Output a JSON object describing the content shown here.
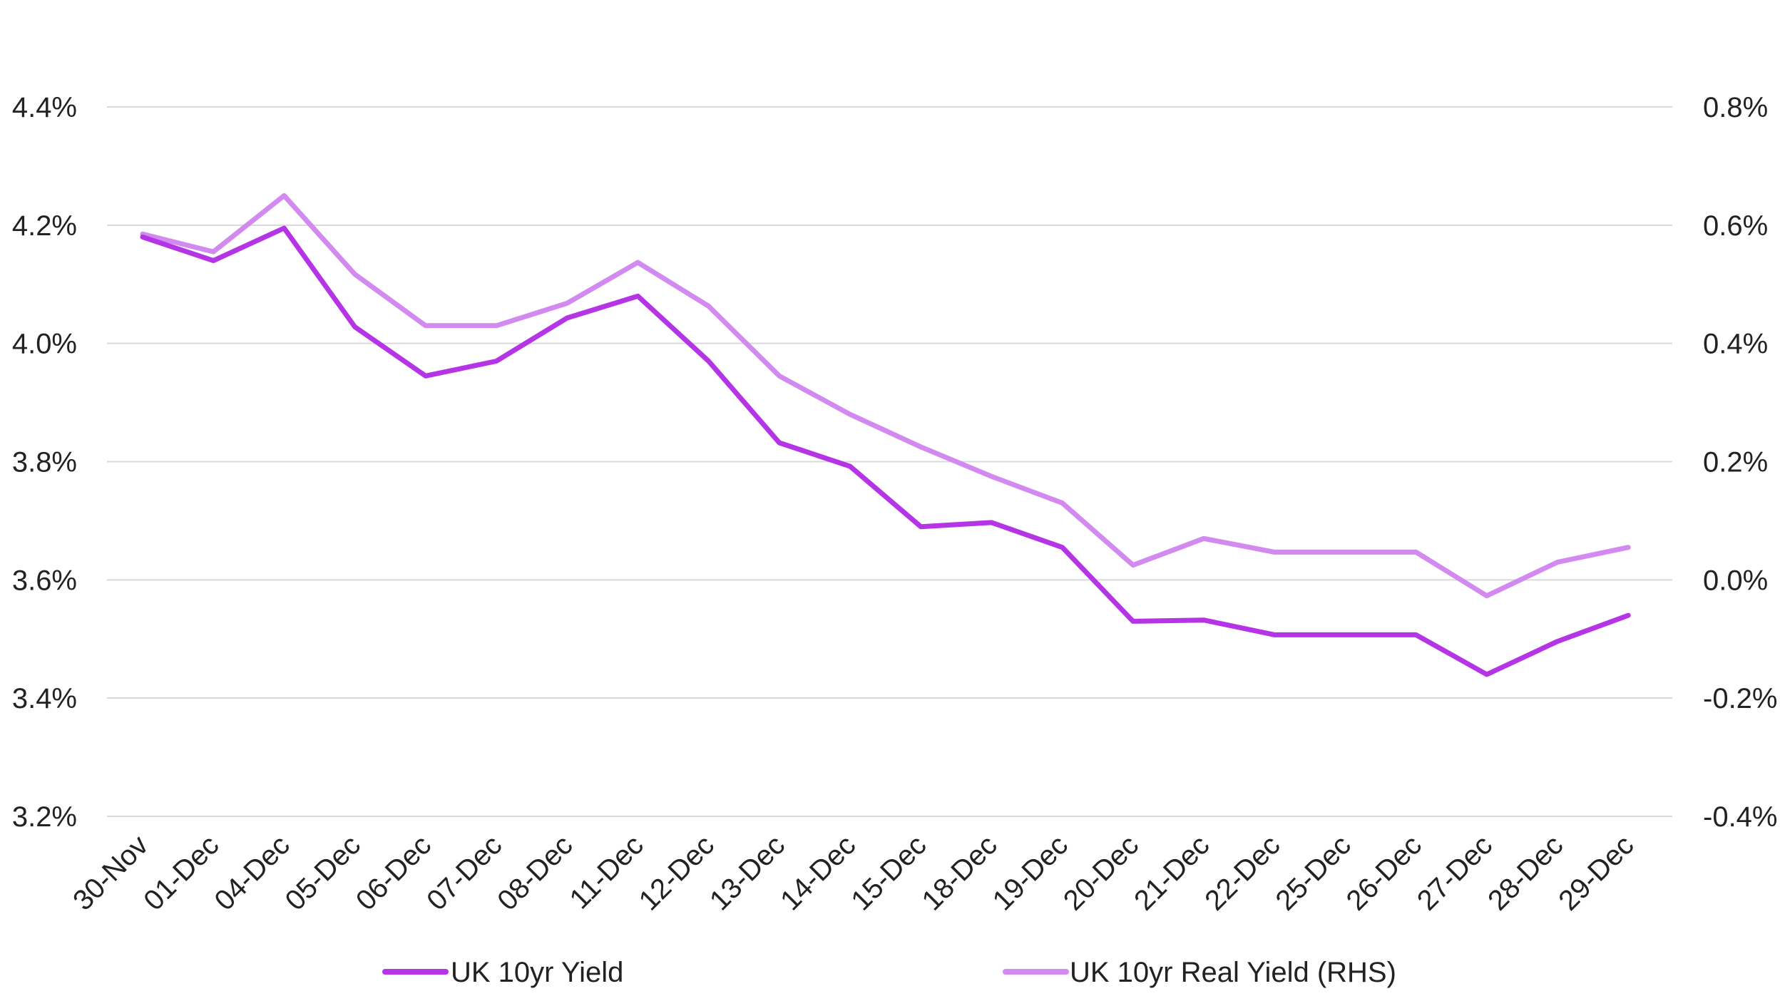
{
  "chart_data": {
    "type": "line",
    "categories": [
      "30-Nov",
      "01-Dec",
      "04-Dec",
      "05-Dec",
      "06-Dec",
      "07-Dec",
      "08-Dec",
      "11-Dec",
      "12-Dec",
      "13-Dec",
      "14-Dec",
      "15-Dec",
      "18-Dec",
      "19-Dec",
      "20-Dec",
      "21-Dec",
      "22-Dec",
      "25-Dec",
      "26-Dec",
      "27-Dec",
      "28-Dec",
      "29-Dec"
    ],
    "y_left": {
      "ticks": [
        "3.2%",
        "3.4%",
        "3.6%",
        "3.8%",
        "4.0%",
        "4.2%",
        "4.4%"
      ],
      "ylim": [
        3.2,
        4.4
      ],
      "unit": "%"
    },
    "y_right": {
      "ticks": [
        "-0.4%",
        "-0.2%",
        "0.0%",
        "0.2%",
        "0.4%",
        "0.6%",
        "0.8%"
      ],
      "ylim": [
        -0.4,
        0.8
      ],
      "unit": "%"
    },
    "series": [
      {
        "name": "UK 10yr Yield",
        "axis": "left",
        "color": "#b535e6",
        "values": [
          4.18,
          4.14,
          4.195,
          4.028,
          3.945,
          3.97,
          4.043,
          4.08,
          3.97,
          3.832,
          3.792,
          3.69,
          3.697,
          3.655,
          3.53,
          3.532,
          3.507,
          3.507,
          3.507,
          3.44,
          3.496,
          3.54
        ]
      },
      {
        "name": "UK 10yr Real Yield (RHS)",
        "axis": "right",
        "color": "#d28af0",
        "values": [
          0.585,
          0.555,
          0.65,
          0.517,
          0.43,
          0.43,
          0.468,
          0.537,
          0.463,
          0.345,
          0.28,
          0.225,
          0.175,
          0.13,
          0.025,
          0.07,
          0.047,
          0.047,
          0.047,
          -0.027,
          0.03,
          0.055
        ]
      }
    ],
    "grid": "horizontal",
    "legend": "bottom"
  }
}
